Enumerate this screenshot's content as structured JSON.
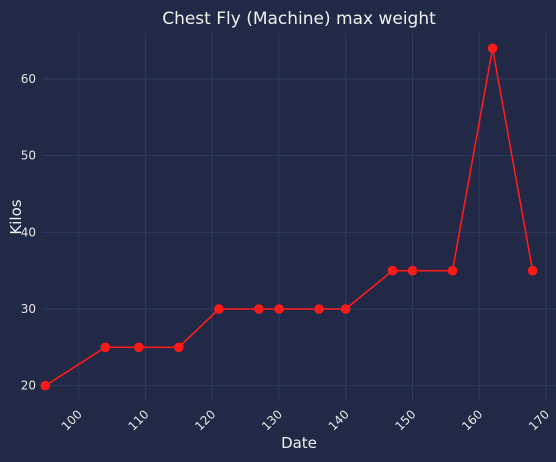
{
  "chart_data": {
    "type": "line",
    "title": "Chest Fly (Machine) max weight",
    "xlabel": "Date",
    "ylabel": "Kilos",
    "xlim": [
      94.5,
      171.5
    ],
    "ylim": [
      18.0,
      66.0
    ],
    "x_ticks": [
      100,
      110,
      120,
      130,
      140,
      150,
      160,
      170
    ],
    "x_tick_labels": [
      "100",
      "110",
      "120",
      "130",
      "140",
      "150",
      "160",
      "170"
    ],
    "y_ticks": [
      20,
      30,
      40,
      50,
      60
    ],
    "y_tick_labels": [
      "20",
      "30",
      "40",
      "50",
      "60"
    ],
    "grid": true,
    "series": [
      {
        "color": "#ff1a1a",
        "points": [
          {
            "x": 95,
            "y": 20
          },
          {
            "x": 104,
            "y": 25
          },
          {
            "x": 109,
            "y": 25
          },
          {
            "x": 115,
            "y": 25
          },
          {
            "x": 121,
            "y": 30
          },
          {
            "x": 127,
            "y": 30
          },
          {
            "x": 130,
            "y": 30
          },
          {
            "x": 136,
            "y": 30
          },
          {
            "x": 140,
            "y": 30
          },
          {
            "x": 147,
            "y": 35
          },
          {
            "x": 150,
            "y": 35
          },
          {
            "x": 156,
            "y": 35
          },
          {
            "x": 162,
            "y": 64
          },
          {
            "x": 168,
            "y": 35
          }
        ]
      }
    ]
  },
  "colors": {
    "background": "#212946",
    "grid": "#2e3a5e",
    "text": "#e6e6e6"
  }
}
